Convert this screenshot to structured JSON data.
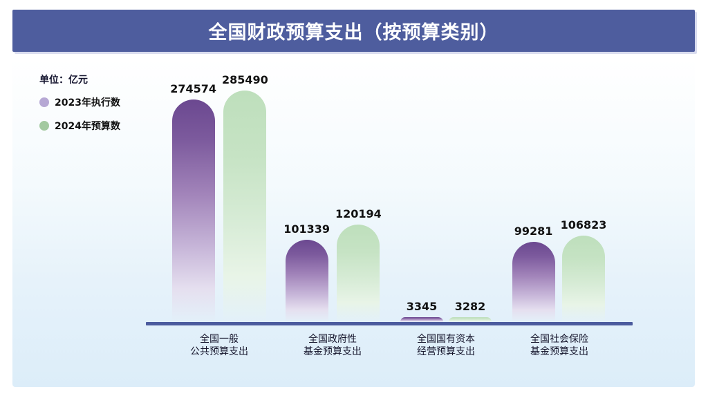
{
  "title": "全国财政预算支出（按预算类别）",
  "unit_label": "单位：亿元",
  "legend": [
    {
      "label": "2023年执行数",
      "color": "#b6a8d4"
    },
    {
      "label": "2024年预算数",
      "color": "#a3c9a0"
    }
  ],
  "chart_data": {
    "type": "bar",
    "title": "全国财政预算支出（按预算类别）",
    "unit": "亿元",
    "categories": [
      [
        "全国一般",
        "公共预算支出"
      ],
      [
        "全国政府性",
        "基金预算支出"
      ],
      [
        "全国国有资本",
        "经营预算支出"
      ],
      [
        "全国社会保险",
        "基金预算支出"
      ]
    ],
    "series": [
      {
        "name": "2023年执行数",
        "values": [
          274574,
          101339,
          3345,
          99281
        ]
      },
      {
        "name": "2024年预算数",
        "values": [
          285490,
          120194,
          3282,
          106823
        ]
      }
    ],
    "ylim": [
      0,
      285490
    ],
    "value_labels": true,
    "grid": false,
    "legend_position": "top-left"
  },
  "colors": {
    "title_bar_bg": "#4e5d9e",
    "title_text": "#ffffff",
    "axis_line": "#4b5b9e",
    "bar_2023_top": "#6f4e95",
    "bar_2024_top": "#bedfbc",
    "legend_2023": "#b6a8d4",
    "legend_2024": "#a3c9a0",
    "card_bg_bottom": "#dcedf9",
    "value_text": "#111111"
  }
}
